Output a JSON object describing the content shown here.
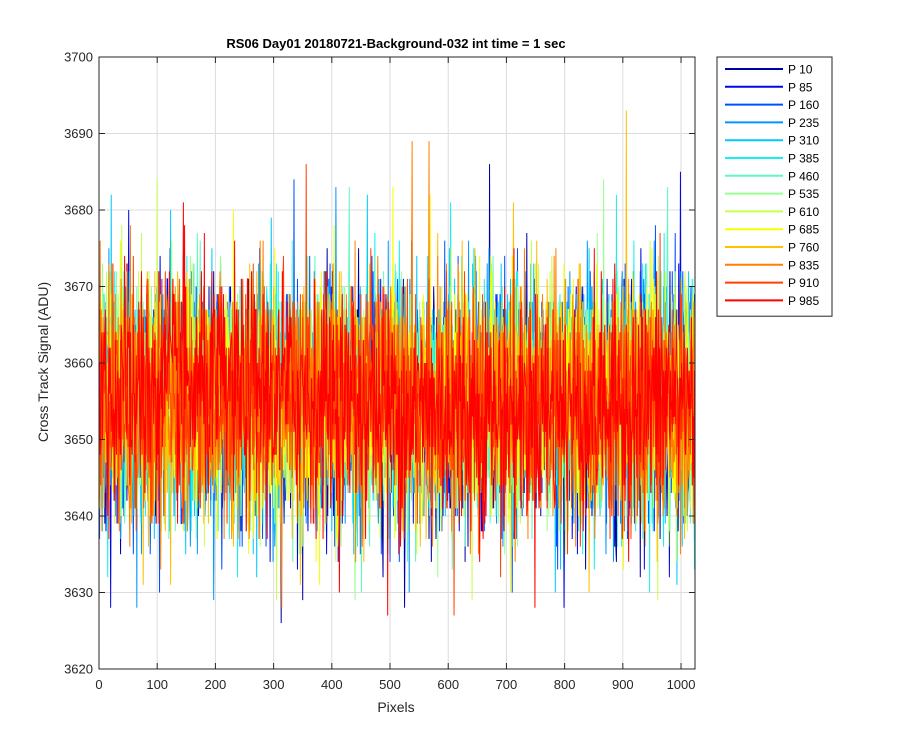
{
  "chart_data": {
    "type": "line",
    "title": "RS06 Day01 20180721-Background-032 int time = 1 sec",
    "xlabel": "Pixels",
    "ylabel": "Cross Track Signal (ADU)",
    "xlim": [
      0,
      1024
    ],
    "ylim": [
      3620,
      3700
    ],
    "xticks": [
      0,
      100,
      200,
      300,
      400,
      500,
      600,
      700,
      800,
      900,
      1000
    ],
    "yticks": [
      3620,
      3630,
      3640,
      3650,
      3660,
      3670,
      3680,
      3690,
      3700
    ],
    "grid": true,
    "legend_location": "outside-top-right",
    "n_points": 1024,
    "noise_description": "dense noisy traces, mean about 3655 ADU, std about 8 ADU",
    "series": [
      {
        "name": "P 10",
        "color": "#0000a8",
        "mean": 3654.0,
        "min": 3626,
        "max": 3686
      },
      {
        "name": "P 85",
        "color": "#0008e8",
        "mean": 3654.5,
        "min": 3628,
        "max": 3685
      },
      {
        "name": "P 160",
        "color": "#0050ff",
        "mean": 3655.0,
        "min": 3630,
        "max": 3684
      },
      {
        "name": "P 235",
        "color": "#0098ff",
        "mean": 3655.0,
        "min": 3628,
        "max": 3683
      },
      {
        "name": "P 310",
        "color": "#00c8ff",
        "mean": 3655.0,
        "min": 3630,
        "max": 3682
      },
      {
        "name": "P 385",
        "color": "#18f0f0",
        "mean": 3655.0,
        "min": 3630,
        "max": 3682
      },
      {
        "name": "P 460",
        "color": "#60f8c0",
        "mean": 3655.0,
        "min": 3630,
        "max": 3683
      },
      {
        "name": "P 535",
        "color": "#98ff90",
        "mean": 3655.0,
        "min": 3629,
        "max": 3684
      },
      {
        "name": "P 610",
        "color": "#c8ff50",
        "mean": 3655.0,
        "min": 3629,
        "max": 3684
      },
      {
        "name": "P 685",
        "color": "#f8ff00",
        "mean": 3655.0,
        "min": 3630,
        "max": 3683
      },
      {
        "name": "P 760",
        "color": "#ffc000",
        "mean": 3655.0,
        "min": 3630,
        "max": 3693
      },
      {
        "name": "P 835",
        "color": "#ff8000",
        "mean": 3655.0,
        "min": 3628,
        "max": 3689
      },
      {
        "name": "P 910",
        "color": "#ff4000",
        "mean": 3655.0,
        "min": 3627,
        "max": 3686
      },
      {
        "name": "P 985",
        "color": "#ff0000",
        "mean": 3655.0,
        "min": 3627,
        "max": 3681
      }
    ]
  }
}
